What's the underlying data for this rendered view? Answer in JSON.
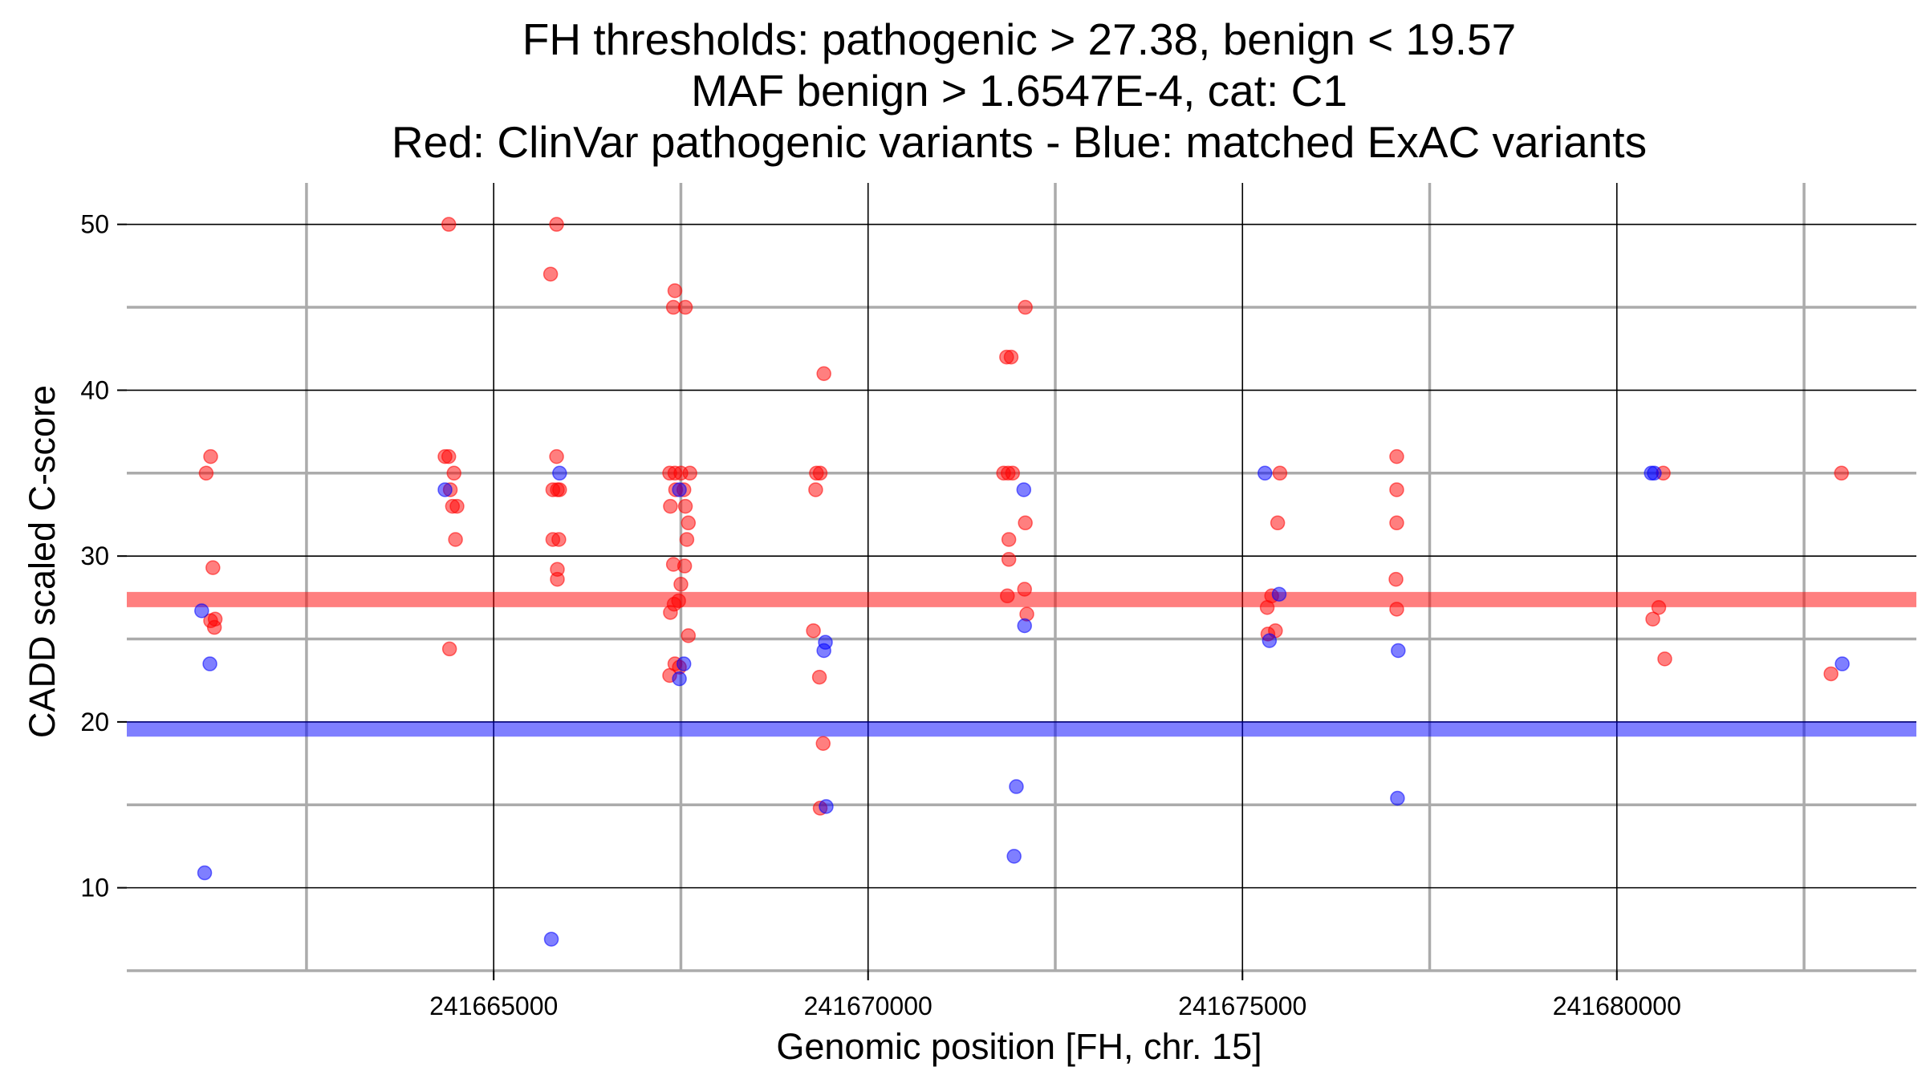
{
  "chart_data": {
    "type": "scatter",
    "title_lines": [
      "FH thresholds: pathogenic > 27.38, benign < 19.57",
      "MAF benign > 1.6547E-4, cat: C1",
      "Red: ClinVar pathogenic variants - Blue: matched ExAC variants"
    ],
    "xlabel": "Genomic position [FH, chr. 15]",
    "ylabel": "CADD scaled C-score",
    "xlim": [
      241660100,
      241684000
    ],
    "ylim": [
      5,
      52.5
    ],
    "x_ticks": [
      241665000,
      241670000,
      241675000,
      241680000
    ],
    "x_tick_labels": [
      "241665000",
      "241670000",
      "241675000",
      "241680000"
    ],
    "x_minor": [
      241662500,
      241667500,
      241672500,
      241677500,
      241682500
    ],
    "y_ticks": [
      10,
      20,
      30,
      40,
      50
    ],
    "y_tick_labels": [
      "10",
      "20",
      "30",
      "40",
      "50"
    ],
    "y_minor": [
      5,
      15,
      25,
      35,
      45
    ],
    "thresholds": [
      {
        "name": "pathogenic threshold",
        "value": 27.38,
        "color": "#ff0000"
      },
      {
        "name": "benign threshold",
        "value": 19.57,
        "color": "#0000ff"
      }
    ],
    "series": [
      {
        "name": "ClinVar pathogenic variants",
        "color": "#ff0000",
        "points": [
          [
            241661160,
            35
          ],
          [
            241661220,
            36
          ],
          [
            241661220,
            26.1
          ],
          [
            241661280,
            26.2
          ],
          [
            241661250,
            29.3
          ],
          [
            241661270,
            25.7
          ],
          [
            241664400,
            50
          ],
          [
            241664350,
            36
          ],
          [
            241664400,
            36
          ],
          [
            241664420,
            34
          ],
          [
            241664470,
            35
          ],
          [
            241664450,
            33
          ],
          [
            241664510,
            33
          ],
          [
            241664490,
            31
          ],
          [
            241664410,
            24.4
          ],
          [
            241665760,
            47
          ],
          [
            241665840,
            50
          ],
          [
            241665790,
            34
          ],
          [
            241665850,
            34
          ],
          [
            241665880,
            34
          ],
          [
            241665840,
            36
          ],
          [
            241665790,
            31
          ],
          [
            241665870,
            31
          ],
          [
            241665850,
            29.2
          ],
          [
            241665850,
            28.6
          ],
          [
            241667350,
            35
          ],
          [
            241667420,
            35
          ],
          [
            241667500,
            35
          ],
          [
            241667620,
            35
          ],
          [
            241667430,
            34
          ],
          [
            241667540,
            34
          ],
          [
            241667360,
            33
          ],
          [
            241667560,
            33
          ],
          [
            241667600,
            32
          ],
          [
            241667580,
            31
          ],
          [
            241667400,
            29.5
          ],
          [
            241667550,
            29.4
          ],
          [
            241667500,
            28.3
          ],
          [
            241667470,
            27.3
          ],
          [
            241667410,
            27.1
          ],
          [
            241667360,
            26.6
          ],
          [
            241667600,
            25.2
          ],
          [
            241667420,
            23.5
          ],
          [
            241667480,
            23.3
          ],
          [
            241667350,
            22.8
          ],
          [
            241667420,
            46
          ],
          [
            241667400,
            45
          ],
          [
            241667560,
            45
          ],
          [
            241669270,
            25.5
          ],
          [
            241669300,
            34
          ],
          [
            241669310,
            35
          ],
          [
            241669360,
            35
          ],
          [
            241669410,
            41
          ],
          [
            241669350,
            22.7
          ],
          [
            241669400,
            18.7
          ],
          [
            241669360,
            14.8
          ],
          [
            241671850,
            42
          ],
          [
            241671910,
            42
          ],
          [
            241671810,
            35
          ],
          [
            241671870,
            35
          ],
          [
            241671930,
            35
          ],
          [
            241672100,
            45
          ],
          [
            241672100,
            32
          ],
          [
            241671880,
            31
          ],
          [
            241671880,
            29.8
          ],
          [
            241672090,
            28
          ],
          [
            241671860,
            27.6
          ],
          [
            241672120,
            26.5
          ],
          [
            241675330,
            26.9
          ],
          [
            241675390,
            27.6
          ],
          [
            241675340,
            25.3
          ],
          [
            241675440,
            25.5
          ],
          [
            241675470,
            32
          ],
          [
            241675500,
            35
          ],
          [
            241677060,
            36
          ],
          [
            241677060,
            34
          ],
          [
            241677060,
            32
          ],
          [
            241677050,
            28.6
          ],
          [
            241677060,
            26.8
          ],
          [
            241680480,
            26.2
          ],
          [
            241680560,
            26.9
          ],
          [
            241680620,
            35
          ],
          [
            241680640,
            23.8
          ],
          [
            241682860,
            22.9
          ],
          [
            241683000,
            35
          ]
        ]
      },
      {
        "name": "matched ExAC variants",
        "color": "#0000ff",
        "points": [
          [
            241661100,
            26.7
          ],
          [
            241661210,
            23.5
          ],
          [
            241661140,
            10.9
          ],
          [
            241664350,
            34
          ],
          [
            241665880,
            35
          ],
          [
            241665770,
            6.9
          ],
          [
            241667540,
            23.5
          ],
          [
            241667480,
            22.6
          ],
          [
            241667480,
            34
          ],
          [
            241669410,
            24.3
          ],
          [
            241669430,
            24.8
          ],
          [
            241669440,
            14.9
          ],
          [
            241672080,
            34
          ],
          [
            241672090,
            25.8
          ],
          [
            241671980,
            16.1
          ],
          [
            241671950,
            11.9
          ],
          [
            241675300,
            35
          ],
          [
            241675360,
            24.9
          ],
          [
            241675490,
            27.7
          ],
          [
            241677080,
            24.3
          ],
          [
            241677070,
            15.4
          ],
          [
            241680460,
            35
          ],
          [
            241680500,
            35
          ],
          [
            241683010,
            23.5
          ]
        ]
      }
    ]
  }
}
